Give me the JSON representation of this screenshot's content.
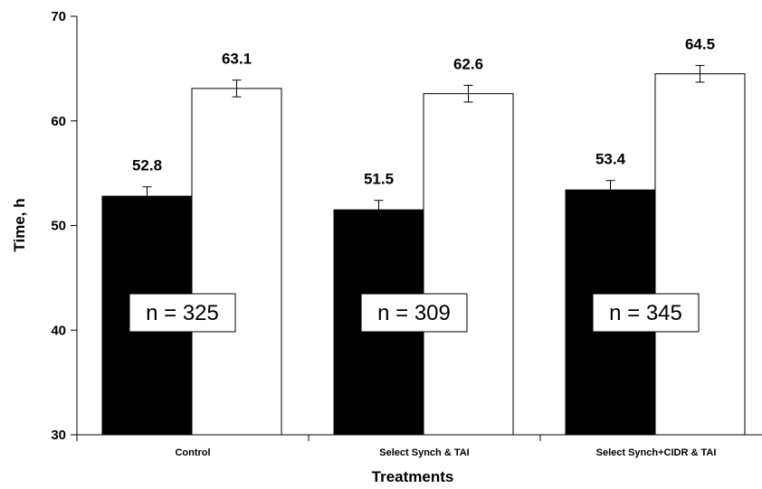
{
  "chart_data": {
    "type": "bar",
    "title": "",
    "xlabel": "Treatments",
    "ylabel": "Time, h",
    "ylim": [
      30,
      70
    ],
    "yticks": [
      30,
      40,
      50,
      60,
      70
    ],
    "grid": false,
    "legend": "none",
    "categories": [
      "Control",
      "Select Synch & TAI",
      "Select Synch+CIDR & TAI"
    ],
    "series": [
      {
        "color": "#000000",
        "values": [
          52.8,
          51.5,
          53.4
        ],
        "errors": [
          0.9,
          0.9,
          0.9
        ]
      },
      {
        "color": "#ffffff",
        "values": [
          63.1,
          62.6,
          64.5
        ],
        "errors": [
          0.8,
          0.8,
          0.8
        ]
      }
    ],
    "data_labels": [
      [
        "52.8",
        "51.5",
        "53.4"
      ],
      [
        "63.1",
        "62.6",
        "64.5"
      ]
    ],
    "annotations": [
      "n = 325",
      "n = 309",
      "n = 345"
    ]
  }
}
